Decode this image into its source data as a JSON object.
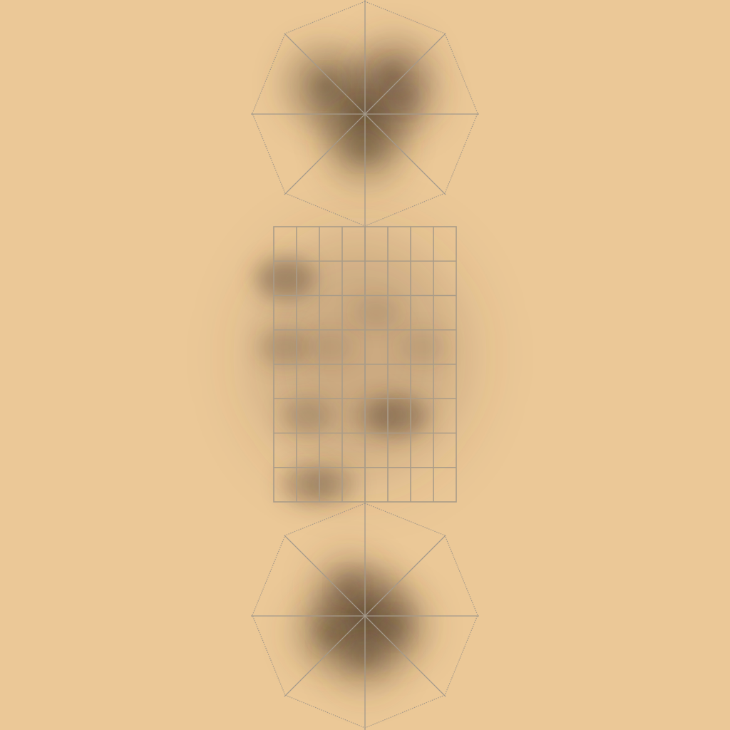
{
  "background_color": "#ebc897",
  "line_color": "#aa9c88",
  "piece_color": "#5a4630",
  "board": {
    "top_arena": {
      "shape": "octagon",
      "spokes": 8,
      "piece_blots": [
        {
          "col": 0.0,
          "row": 0.0,
          "weight": 1.0
        },
        {
          "col": -0.35,
          "row": -0.25,
          "weight": 0.7
        },
        {
          "col": 0.25,
          "row": -0.35,
          "weight": 0.6
        },
        {
          "col": 0.0,
          "row": 0.3,
          "weight": 0.55
        },
        {
          "col": 0.35,
          "row": -0.15,
          "weight": 0.4
        }
      ]
    },
    "middle_grid": {
      "columns": 8,
      "rows": 8,
      "piece_blots": [
        {
          "col": 0,
          "row": 1,
          "weight": 0.75
        },
        {
          "col": 0,
          "row": 3,
          "weight": 0.45
        },
        {
          "col": 1,
          "row": 5,
          "weight": 0.45
        },
        {
          "col": 5,
          "row": 5,
          "weight": 0.7
        },
        {
          "col": 4,
          "row": 5,
          "weight": 0.4
        },
        {
          "col": 1,
          "row": 7,
          "weight": 0.55
        },
        {
          "col": 2,
          "row": 7,
          "weight": 0.45
        },
        {
          "col": 2,
          "row": 3,
          "weight": 0.25
        },
        {
          "col": 4,
          "row": 2,
          "weight": 0.25
        },
        {
          "col": 6,
          "row": 3,
          "weight": 0.25
        }
      ]
    },
    "bottom_arena": {
      "shape": "octagon",
      "spokes": 8,
      "piece_blots": [
        {
          "col": 0.0,
          "row": 0.0,
          "weight": 1.0
        },
        {
          "col": -0.3,
          "row": 0.15,
          "weight": 0.55
        },
        {
          "col": 0.25,
          "row": 0.1,
          "weight": 0.5
        },
        {
          "col": 0.0,
          "row": 0.35,
          "weight": 0.5
        },
        {
          "col": -0.15,
          "row": -0.25,
          "weight": 0.4
        }
      ]
    }
  }
}
